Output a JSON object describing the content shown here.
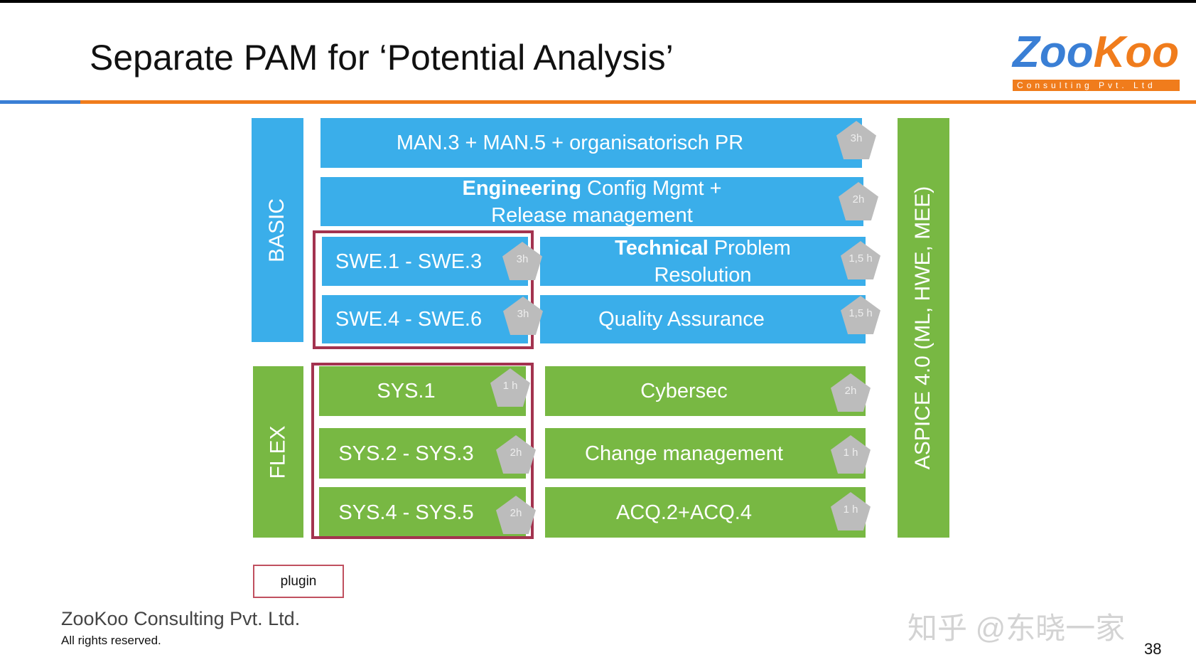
{
  "slide": {
    "title": "Separate PAM for ‘Potential Analysis’",
    "logo_text": "ZooKoo",
    "logo_subtext": "Consulting Pvt. Ltd",
    "colors": {
      "basic": "#3aaeea",
      "flex": "#78b843",
      "highlight": "#a3334f",
      "accent_orange": "#f07c1c",
      "accent_blue": "#3a7fd5"
    },
    "columns": {
      "basic": "BASIC",
      "flex": "FLEX",
      "aspice": "ASPICE 4.0 (ML, HWE, MEE)"
    },
    "blocks": [
      {
        "label": "MAN.3 + MAN.5 + organisatorisch PR",
        "effort": "3h"
      },
      {
        "label_bold": "Engineering",
        "label": "Config Mgmt + Release management",
        "effort": "2h"
      },
      {
        "label": "SWE.1 - SWE.3",
        "effort": "3h"
      },
      {
        "label_bold": "Technical",
        "label": "Problem Resolution",
        "effort": "1,5 h"
      },
      {
        "label": "SWE.4 - SWE.6",
        "effort": "3h"
      },
      {
        "label": "Quality Assurance",
        "effort": "1,5 h"
      },
      {
        "label": "SYS.1",
        "effort": "1 h"
      },
      {
        "label": "Cybersec",
        "effort": "2h"
      },
      {
        "label": "SYS.2 - SYS.3",
        "effort": "2h"
      },
      {
        "label": "Change management",
        "effort": "1 h"
      },
      {
        "label": "SYS.4 - SYS.5",
        "effort": "2h"
      },
      {
        "label": "ACQ.2+ACQ.4",
        "effort": "1 h"
      }
    ],
    "legend_plugin": "plugin",
    "footer_company": "ZooKoo Consulting Pvt. Ltd.",
    "footer_rights": "All rights reserved.",
    "watermark": "知乎 @东晓一家",
    "page_number": "38"
  }
}
